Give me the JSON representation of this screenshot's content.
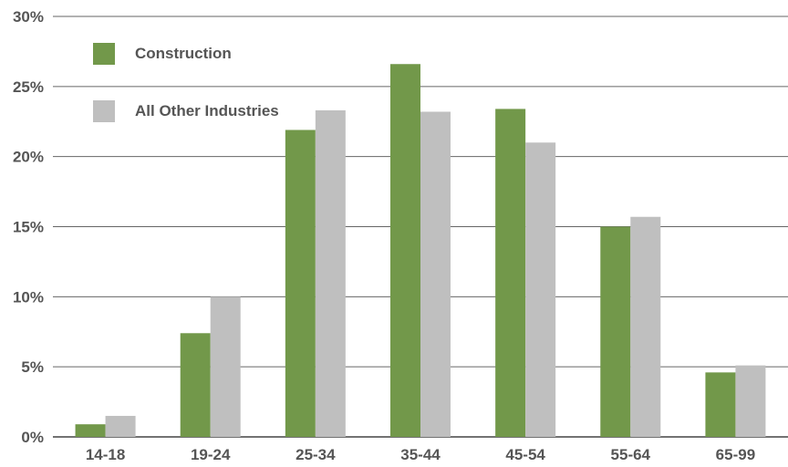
{
  "chart_data": {
    "type": "bar",
    "title": "",
    "xlabel": "",
    "ylabel": "",
    "categories": [
      "14-18",
      "19-24",
      "25-34",
      "35-44",
      "45-54",
      "55-64",
      "65-99"
    ],
    "series": [
      {
        "name": "Construction",
        "color": "#72984a",
        "values": [
          0.9,
          7.4,
          21.9,
          26.6,
          23.4,
          15.0,
          4.6
        ]
      },
      {
        "name": "All Other Industries",
        "color": "#bfbfbf",
        "values": [
          1.5,
          10.0,
          23.3,
          23.2,
          21.0,
          15.7,
          5.1
        ]
      }
    ],
    "ylim": [
      0,
      30
    ],
    "yticks": [
      0,
      5,
      10,
      15,
      20,
      25,
      30
    ],
    "ytick_labels": [
      "0%",
      "5%",
      "10%",
      "15%",
      "20%",
      "25%",
      "30%"
    ],
    "grid": true,
    "legend_position": "top-left"
  }
}
